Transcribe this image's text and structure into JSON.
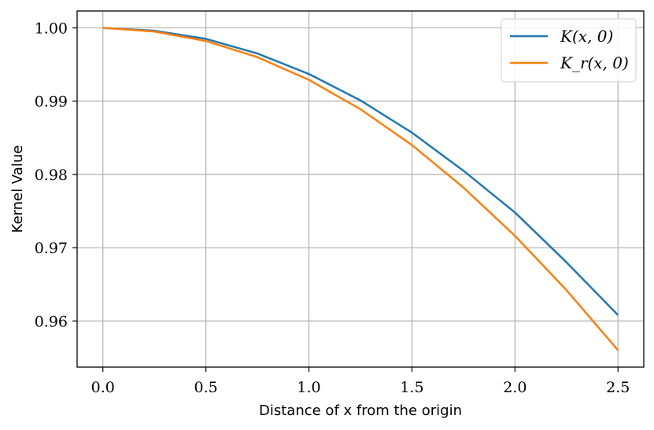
{
  "chart_data": {
    "type": "line",
    "xlabel": "Distance of x from the origin",
    "ylabel": "Kernel Value",
    "xlim": [
      -0.125,
      2.625
    ],
    "ylim": [
      0.9537,
      1.0023
    ],
    "xticks": [
      0.0,
      0.5,
      1.0,
      1.5,
      2.0,
      2.5
    ],
    "xtick_labels": [
      "0.0",
      "0.5",
      "1.0",
      "1.5",
      "2.0",
      "2.5"
    ],
    "yticks": [
      0.96,
      0.97,
      0.98,
      0.99,
      1.0
    ],
    "ytick_labels": [
      "0.96",
      "0.97",
      "0.98",
      "0.99",
      "1.00"
    ],
    "grid": true,
    "legend_position": "top-right",
    "x": [
      0.0,
      0.25,
      0.5,
      0.75,
      1.0,
      1.25,
      1.5,
      1.75,
      2.0,
      2.25,
      2.5
    ],
    "series": [
      {
        "name": "K(x, 0)",
        "color": "#1f77b4",
        "values": [
          1.0,
          0.9996,
          0.9985,
          0.9965,
          0.9937,
          0.9901,
          0.9857,
          0.9805,
          0.9748,
          0.968,
          0.9608
        ]
      },
      {
        "name": "K_r(x, 0)",
        "color": "#ff7f0e",
        "values": [
          1.0,
          0.9995,
          0.9982,
          0.996,
          0.9929,
          0.9889,
          0.984,
          0.9782,
          0.9716,
          0.9642,
          0.956
        ]
      }
    ]
  }
}
